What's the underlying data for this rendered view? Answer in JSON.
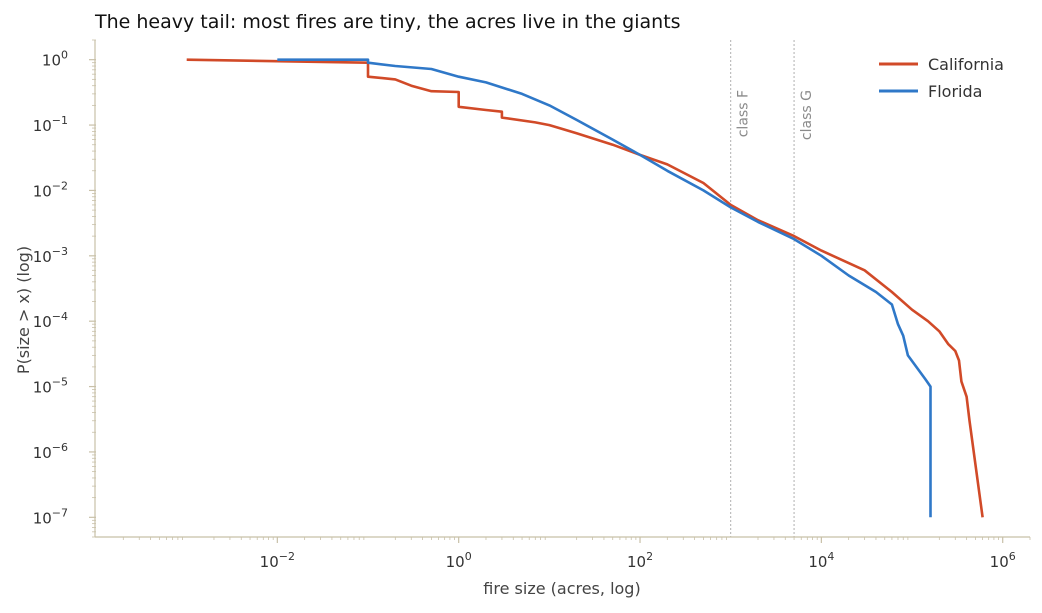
{
  "colors": {
    "california": "#d14a28",
    "florida": "#2f78c8",
    "axis": "#c8c0a8",
    "guide": "#b0b0b0"
  },
  "chart_data": {
    "type": "line",
    "title": "The heavy tail: most fires are tiny, the acres live in the giants",
    "xlabel": "fire size (acres, log)",
    "ylabel": "P(size > x)  (log)",
    "xscale": "log",
    "yscale": "log",
    "xlim": [
      0.0001,
      2000000
    ],
    "ylim": [
      5e-08,
      2
    ],
    "xticks": [
      {
        "value": 0.01,
        "base": "10",
        "exp": "−2"
      },
      {
        "value": 1,
        "base": "10",
        "exp": "0"
      },
      {
        "value": 100,
        "base": "10",
        "exp": "2"
      },
      {
        "value": 10000,
        "base": "10",
        "exp": "4"
      },
      {
        "value": 1000000,
        "base": "10",
        "exp": "6"
      }
    ],
    "yticks": [
      {
        "value": 1,
        "base": "10",
        "exp": "0"
      },
      {
        "value": 0.1,
        "base": "10",
        "exp": "−1"
      },
      {
        "value": 0.01,
        "base": "10",
        "exp": "−2"
      },
      {
        "value": 0.001,
        "base": "10",
        "exp": "−3"
      },
      {
        "value": 0.0001,
        "base": "10",
        "exp": "−4"
      },
      {
        "value": 1e-05,
        "base": "10",
        "exp": "−5"
      },
      {
        "value": 1e-06,
        "base": "10",
        "exp": "−6"
      },
      {
        "value": 1e-07,
        "base": "10",
        "exp": "−7"
      }
    ],
    "annotations": [
      {
        "label": "class F",
        "x": 1000
      },
      {
        "label": "class G",
        "x": 5000
      }
    ],
    "legend_position": "top-right",
    "grid": false,
    "series": [
      {
        "name": "California",
        "color_key": "california",
        "points": [
          [
            0.001,
            1.0
          ],
          [
            0.1,
            0.9
          ],
          [
            0.1,
            0.55
          ],
          [
            0.2,
            0.5
          ],
          [
            0.3,
            0.4
          ],
          [
            0.5,
            0.33
          ],
          [
            1.0,
            0.32
          ],
          [
            1.0,
            0.19
          ],
          [
            2.0,
            0.17
          ],
          [
            3.0,
            0.16
          ],
          [
            3.0,
            0.13
          ],
          [
            7.0,
            0.11
          ],
          [
            10.0,
            0.1
          ],
          [
            20.0,
            0.075
          ],
          [
            50.0,
            0.05
          ],
          [
            100.0,
            0.035
          ],
          [
            200.0,
            0.025
          ],
          [
            500.0,
            0.013
          ],
          [
            1000.0,
            0.006
          ],
          [
            2000.0,
            0.0035
          ],
          [
            5000.0,
            0.002
          ],
          [
            10000.0,
            0.0012
          ],
          [
            30000.0,
            0.0006
          ],
          [
            60000.0,
            0.00028
          ],
          [
            100000.0,
            0.00015
          ],
          [
            150000.0,
            0.0001
          ],
          [
            200000.0,
            7e-05
          ],
          [
            250000.0,
            4.5e-05
          ],
          [
            300000.0,
            3.5e-05
          ],
          [
            330000.0,
            2.5e-05
          ],
          [
            350000.0,
            1.2e-05
          ],
          [
            400000.0,
            7e-06
          ],
          [
            430000.0,
            3e-06
          ],
          [
            600000.0,
            1e-07
          ]
        ]
      },
      {
        "name": "Florida",
        "color_key": "florida",
        "points": [
          [
            0.01,
            1.0
          ],
          [
            0.1,
            1.0
          ],
          [
            0.1,
            0.9
          ],
          [
            0.2,
            0.8
          ],
          [
            0.5,
            0.72
          ],
          [
            1.0,
            0.55
          ],
          [
            2.0,
            0.45
          ],
          [
            5.0,
            0.3
          ],
          [
            10.0,
            0.2
          ],
          [
            20.0,
            0.12
          ],
          [
            50.0,
            0.06
          ],
          [
            100.0,
            0.035
          ],
          [
            200.0,
            0.02
          ],
          [
            500.0,
            0.01
          ],
          [
            1000.0,
            0.0055
          ],
          [
            2000.0,
            0.0033
          ],
          [
            5000.0,
            0.0018
          ],
          [
            10000.0,
            0.001
          ],
          [
            20000.0,
            0.0005
          ],
          [
            40000.0,
            0.00028
          ],
          [
            60000.0,
            0.00018
          ],
          [
            70000.0,
            9e-05
          ],
          [
            80000.0,
            6e-05
          ],
          [
            90000.0,
            3e-05
          ],
          [
            140000.0,
            1.3e-05
          ],
          [
            160000.0,
            1e-05
          ],
          [
            160000.0,
            1e-07
          ]
        ]
      }
    ]
  }
}
